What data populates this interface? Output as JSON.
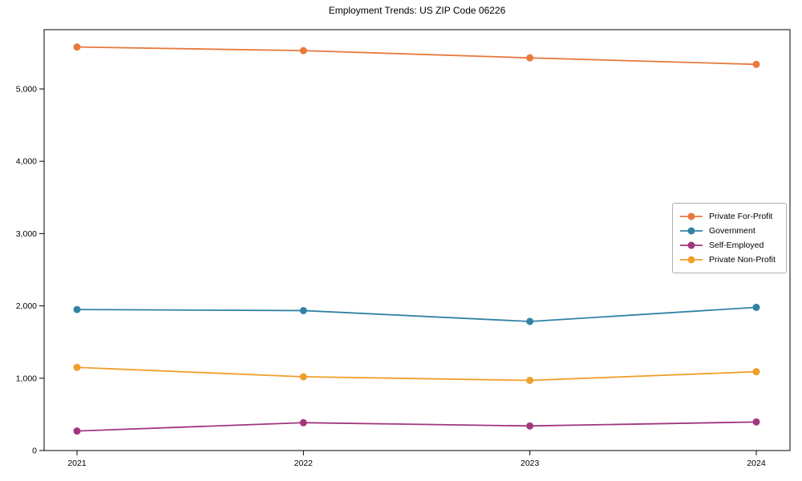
{
  "chart_data": {
    "type": "line",
    "title": "Employment Trends: US ZIP Code 06226",
    "categories": [
      "2021",
      "2022",
      "2023",
      "2024"
    ],
    "series": [
      {
        "name": "Private For-Profit",
        "color": "#e8793e",
        "values": [
          5580,
          5530,
          5430,
          5340
        ]
      },
      {
        "name": "Government",
        "color": "#3282a5",
        "values": [
          1950,
          1935,
          1785,
          1980
        ]
      },
      {
        "name": "Self-Employed",
        "color": "#a1367f",
        "values": [
          270,
          385,
          340,
          395
        ]
      },
      {
        "name": "Private Non-Profit",
        "color": "#f09f2b",
        "values": [
          1150,
          1020,
          970,
          1090
        ]
      }
    ],
    "xlabel": "",
    "ylabel": "",
    "ylim": [
      0,
      5820
    ],
    "y_ticks": [
      0,
      1000,
      2000,
      3000,
      4000,
      5000
    ],
    "y_tick_labels": [
      "0",
      "1,000",
      "2,000",
      "3,000",
      "4,000",
      "5,000"
    ],
    "grid": false,
    "legend_position": "center-right",
    "frame_color": "#000000"
  }
}
